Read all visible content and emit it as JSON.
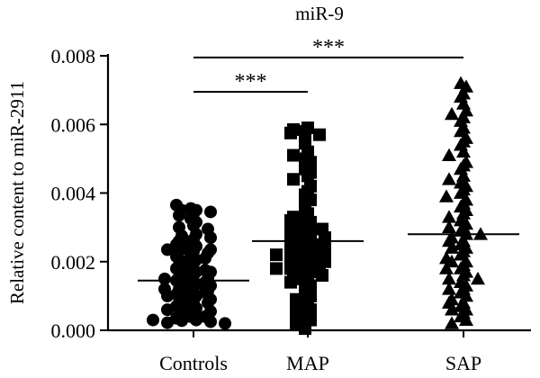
{
  "chart_data": {
    "type": "scatter",
    "title": "miR-9",
    "ylabel": "Relative content to miR-2911",
    "xlabel": "",
    "categories": [
      "Controls",
      "MAP",
      "SAP"
    ],
    "ylim": [
      0,
      0.008
    ],
    "yticks": [
      "0.000",
      "0.002",
      "0.004",
      "0.006",
      "0.008"
    ],
    "grid": false,
    "colors": {
      "points": "#000000",
      "axes": "#000000"
    },
    "series": [
      {
        "category": "Controls",
        "marker": "circle",
        "mean": 0.00145,
        "values": [
          0.00355,
          0.0034,
          0.00365,
          0.0035,
          0.00335,
          0.0035,
          0.00345,
          0.00325,
          0.00315,
          0.00305,
          0.003,
          0.00295,
          0.0028,
          0.00275,
          0.0027,
          0.00265,
          0.0026,
          0.00255,
          0.0025,
          0.00245,
          0.0024,
          0.00235,
          0.00235,
          0.0023,
          0.0023,
          0.00225,
          0.0022,
          0.00215,
          0.0021,
          0.00205,
          0.002,
          0.00195,
          0.0019,
          0.00185,
          0.0018,
          0.00175,
          0.0017,
          0.00165,
          0.0016,
          0.00155,
          0.0015,
          0.00148,
          0.00145,
          0.0014,
          0.00135,
          0.0013,
          0.00125,
          0.0012,
          0.00115,
          0.0011,
          0.00105,
          0.001,
          0.00095,
          0.0009,
          0.00085,
          0.0008,
          0.00075,
          0.0007,
          0.00065,
          0.0006,
          0.00055,
          0.0005,
          0.00045,
          0.0004,
          0.00035,
          0.0003,
          0.00028,
          0.00025,
          0.00022,
          0.0002,
          0.0012,
          0.001,
          0.0008,
          0.0006,
          0.0004,
          0.0003,
          0.0017,
          0.0015,
          0.0013,
          0.0011
        ]
      },
      {
        "category": "MAP",
        "marker": "square",
        "mean": 0.0026,
        "values": [
          0.0059,
          0.00585,
          0.0058,
          0.00575,
          0.0057,
          0.00545,
          0.0052,
          0.0051,
          0.005,
          0.0049,
          0.0047,
          0.0046,
          0.0045,
          0.0044,
          0.0042,
          0.00405,
          0.00395,
          0.0038,
          0.0036,
          0.0034,
          0.0033,
          0.00325,
          0.0032,
          0.00315,
          0.0031,
          0.00305,
          0.003,
          0.00295,
          0.0029,
          0.00285,
          0.0028,
          0.00275,
          0.0027,
          0.00265,
          0.0026,
          0.00255,
          0.0025,
          0.00245,
          0.0024,
          0.00235,
          0.0023,
          0.00225,
          0.0022,
          0.00215,
          0.0021,
          0.00205,
          0.002,
          0.00195,
          0.0019,
          0.00185,
          0.0018,
          0.00175,
          0.0017,
          0.00165,
          0.0016,
          0.0015,
          0.0014,
          0.0013,
          0.0012,
          0.0011,
          0.001,
          0.0009,
          0.0008,
          0.0007,
          0.0006,
          0.00055,
          0.0005,
          0.0004,
          0.0003,
          0.0002,
          5e-05,
          0.0023,
          0.0022,
          0.002,
          0.0018,
          0.0016,
          0.0014,
          0.0025
        ]
      },
      {
        "category": "SAP",
        "marker": "triangle",
        "mean": 0.0028,
        "values": [
          0.0072,
          0.0071,
          0.0069,
          0.0068,
          0.0066,
          0.0064,
          0.0063,
          0.0062,
          0.0061,
          0.0059,
          0.0058,
          0.0056,
          0.0055,
          0.0054,
          0.0052,
          0.0051,
          0.0049,
          0.0048,
          0.0047,
          0.0045,
          0.0044,
          0.0043,
          0.0042,
          0.0041,
          0.004,
          0.0039,
          0.0038,
          0.0037,
          0.0036,
          0.0035,
          0.0034,
          0.0033,
          0.0032,
          0.0031,
          0.003,
          0.0029,
          0.0028,
          0.0027,
          0.0026,
          0.0025,
          0.0024,
          0.0023,
          0.0022,
          0.0021,
          0.002,
          0.0019,
          0.0018,
          0.0017,
          0.0016,
          0.0015,
          0.0014,
          0.0013,
          0.0012,
          0.0011,
          0.001,
          0.0009,
          0.0008,
          0.0007,
          0.0006,
          0.0005,
          0.0004,
          0.0003,
          0.0002,
          0.003,
          0.0028,
          0.0026,
          0.0024,
          0.002,
          0.0018,
          0.0015,
          0.0012,
          0.0008,
          0.0006
        ]
      }
    ],
    "annotations": [
      {
        "text": "***",
        "from": "Controls",
        "to": "MAP",
        "y": 0.00695
      },
      {
        "text": "***",
        "from": "Controls",
        "to": "SAP",
        "y": 0.00795
      }
    ]
  }
}
